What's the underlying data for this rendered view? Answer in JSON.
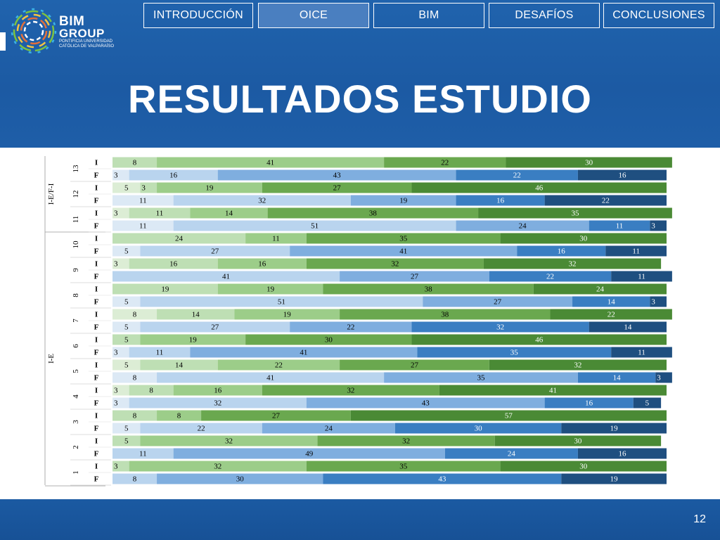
{
  "nav": {
    "items": [
      {
        "label": "INTRODUCCIÓN",
        "active": false
      },
      {
        "label": "OICE",
        "active": true
      },
      {
        "label": "BIM",
        "active": false
      },
      {
        "label": "DESAFÍOS",
        "active": false
      },
      {
        "label": "CONCLUSIONES",
        "active": false
      }
    ]
  },
  "logo": {
    "line1": "BIM",
    "line2": "GROUP",
    "line3": "PONTIFICIA UNIVERSIDAD",
    "line4": "CATÓLICA DE VALPARAÍSO"
  },
  "title": "RESULTADOS ESTUDIO",
  "page_number": "12",
  "colors": {
    "initial": [
      "#dcedd5",
      "#bedfb4",
      "#9ccd89",
      "#6aa84f",
      "#4a8a35"
    ],
    "final": [
      "#dce9f5",
      "#b9d4ee",
      "#7faedf",
      "#3a7ec2",
      "#1f4f80"
    ],
    "header_bg": "#1f5fa8"
  },
  "chart_data": {
    "type": "bar",
    "orientation": "horizontal",
    "stacked": true,
    "percent": true,
    "xlim": [
      0,
      100
    ],
    "groups": [
      {
        "label": "I-E / F-I",
        "question_ids": [
          "13",
          "12",
          "11"
        ]
      },
      {
        "label": "I-E",
        "question_ids": [
          "10",
          "9",
          "8",
          "7",
          "6",
          "5",
          "4",
          "3",
          "2",
          "1"
        ]
      }
    ],
    "questions": [
      {
        "id": "13",
        "I": [
          0,
          8,
          41,
          22,
          30
        ],
        "F": [
          3,
          16,
          43,
          22,
          16
        ]
      },
      {
        "id": "12",
        "I": [
          5,
          3,
          19,
          27,
          46
        ],
        "F": [
          11,
          32,
          19,
          16,
          22
        ]
      },
      {
        "id": "11",
        "I": [
          3,
          11,
          14,
          38,
          35
        ],
        "F": [
          11,
          51,
          24,
          11,
          3
        ]
      },
      {
        "id": "10",
        "I": [
          0,
          24,
          11,
          35,
          30
        ],
        "F": [
          5,
          27,
          41,
          16,
          11
        ]
      },
      {
        "id": "9",
        "I": [
          3,
          16,
          16,
          32,
          32
        ],
        "F": [
          0,
          41,
          27,
          22,
          11
        ]
      },
      {
        "id": "8",
        "I": [
          0,
          19,
          19,
          38,
          24
        ],
        "F": [
          5,
          51,
          27,
          14,
          3
        ]
      },
      {
        "id": "7",
        "I": [
          8,
          14,
          19,
          38,
          22
        ],
        "F": [
          5,
          27,
          22,
          32,
          14
        ]
      },
      {
        "id": "6",
        "I": [
          0,
          5,
          19,
          30,
          46
        ],
        "F": [
          3,
          11,
          41,
          35,
          11
        ]
      },
      {
        "id": "5",
        "I": [
          5,
          14,
          22,
          27,
          32
        ],
        "F": [
          8,
          41,
          35,
          14,
          3
        ]
      },
      {
        "id": "4",
        "I": [
          3,
          8,
          16,
          32,
          41
        ],
        "F": [
          3,
          32,
          43,
          16,
          5
        ]
      },
      {
        "id": "3",
        "I": [
          0,
          8,
          8,
          27,
          57
        ],
        "F": [
          5,
          22,
          24,
          30,
          19
        ]
      },
      {
        "id": "2",
        "I": [
          0,
          5,
          32,
          32,
          30
        ],
        "F": [
          0,
          11,
          49,
          24,
          16
        ]
      },
      {
        "id": "1",
        "I": [
          0,
          3,
          32,
          35,
          30
        ],
        "F": [
          0,
          8,
          30,
          43,
          19
        ]
      }
    ],
    "row_labels": {
      "initial": "I",
      "final": "F"
    }
  }
}
